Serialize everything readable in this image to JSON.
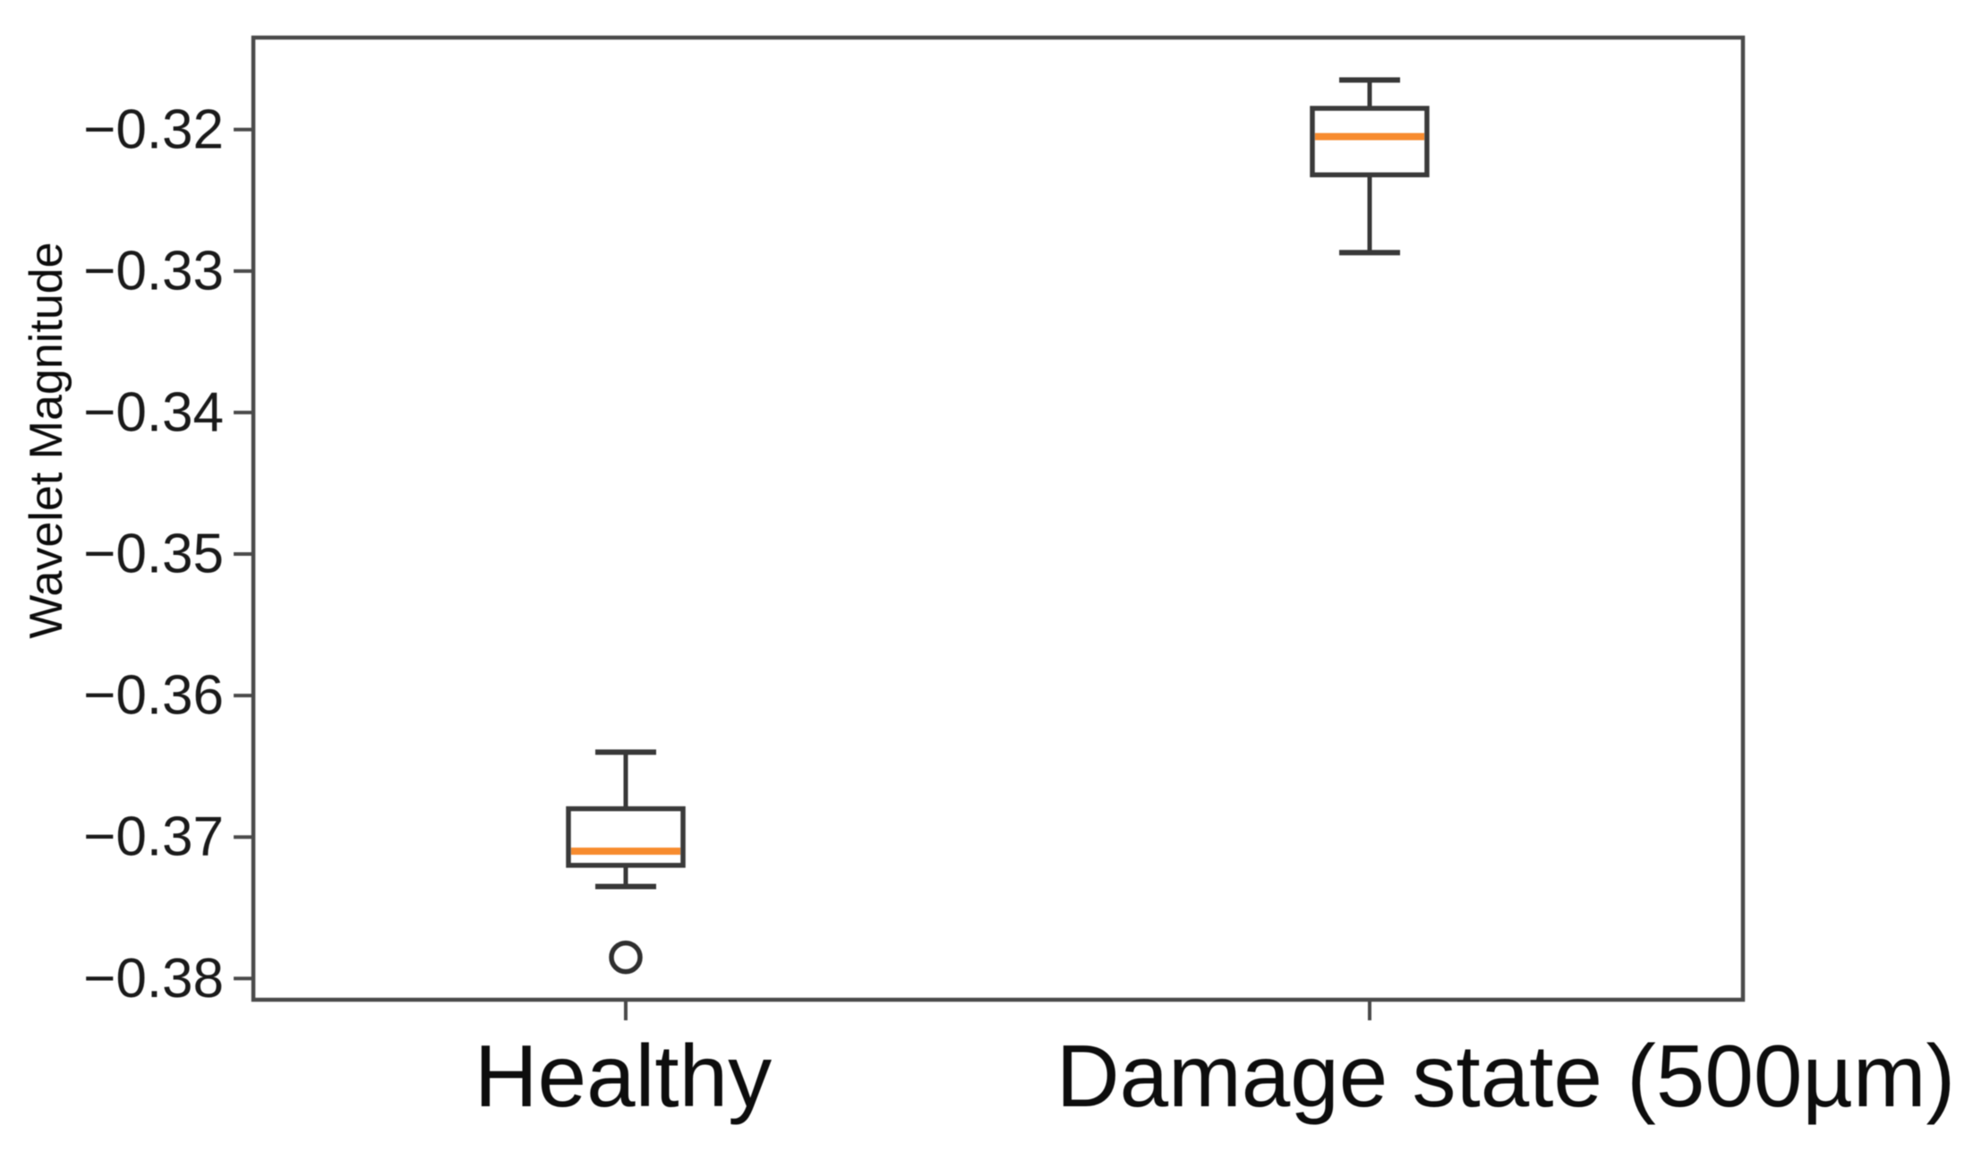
{
  "figure": {
    "background": "#ffffff"
  },
  "chart_data": {
    "type": "boxplot",
    "title": "",
    "xlabel": "",
    "ylabel": "Wavelet Magnitude",
    "categories": [
      "Healthy",
      "Damage state (500µm)"
    ],
    "ylim": [
      -0.3815,
      -0.3135
    ],
    "yticks": [
      -0.32,
      -0.33,
      -0.34,
      -0.35,
      -0.36,
      -0.37,
      -0.38
    ],
    "ytick_labels": [
      "−0.32",
      "−0.33",
      "−0.34",
      "−0.35",
      "−0.36",
      "−0.37",
      "−0.38"
    ],
    "grid": false,
    "legend": null,
    "series": [
      {
        "name": "Healthy",
        "whisker_low": -0.3735,
        "q1": -0.372,
        "median": -0.371,
        "q3": -0.368,
        "whisker_high": -0.364,
        "outliers": [
          -0.3785
        ]
      },
      {
        "name": "Damage state (500µm)",
        "whisker_low": -0.3287,
        "q1": -0.3232,
        "median": -0.3205,
        "q3": -0.3185,
        "whisker_high": -0.3165,
        "outliers": []
      }
    ],
    "colors": {
      "box_line": "#3a3a3a",
      "median_line": "#f78b2e",
      "whisker_line": "#383838",
      "outlier_stroke": "#2f2f2f",
      "axis_line": "#4a4a4a",
      "tick_text": "#1a1a1a",
      "label_text": "#0d0d0d"
    }
  }
}
